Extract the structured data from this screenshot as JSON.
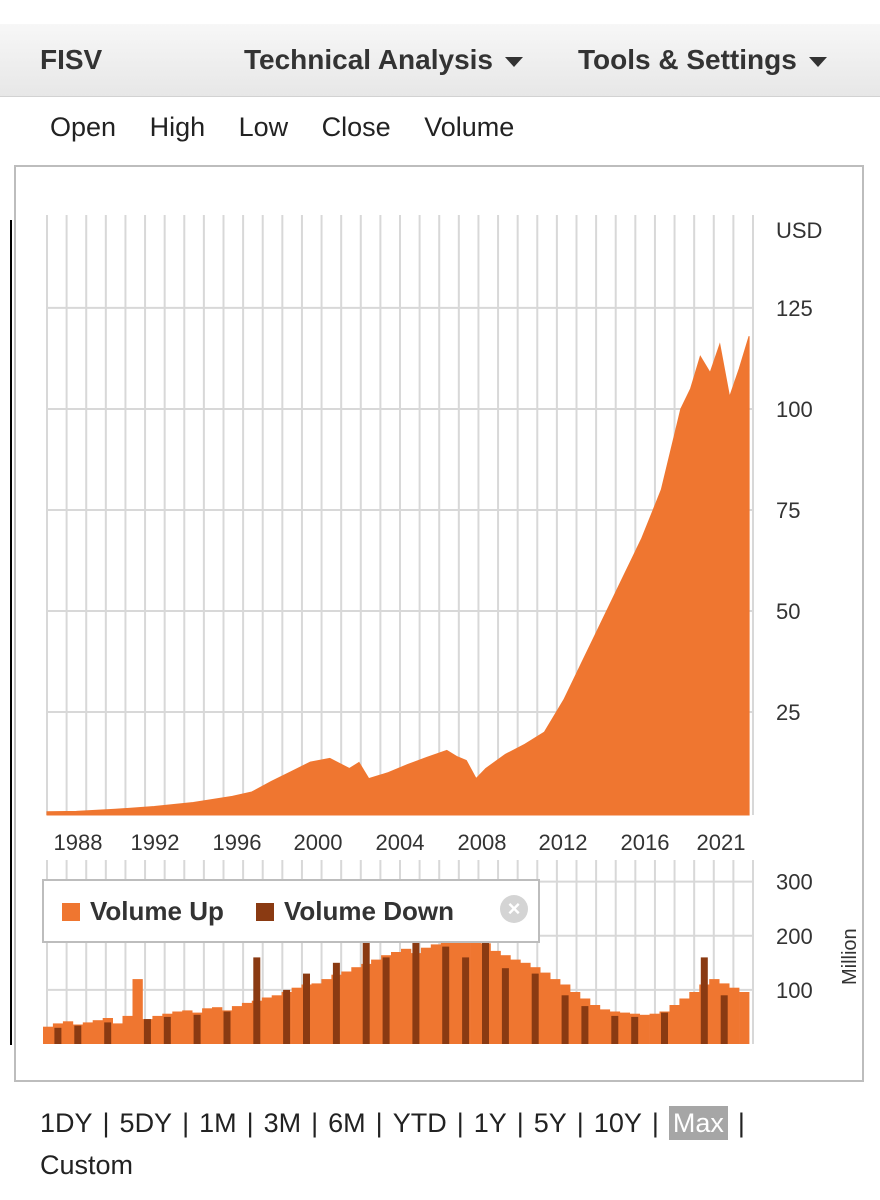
{
  "header": {
    "ticker": "FISV",
    "technical_analysis_label": "Technical Analysis",
    "tools_settings_label": "Tools & Settings"
  },
  "fields": [
    "Open",
    "High",
    "Low",
    "Close",
    "Volume"
  ],
  "legend": {
    "volume_up_label": "Volume Up",
    "volume_down_label": "Volume Down",
    "close_icon": "close-icon"
  },
  "ranges": [
    "1DY",
    "5DY",
    "1M",
    "3M",
    "6M",
    "YTD",
    "1Y",
    "5Y",
    "10Y",
    "Max",
    "Custom"
  ],
  "active_range": "Max",
  "colors": {
    "price_area": "#ef7630",
    "volume_up": "#ef7630",
    "volume_down": "#8a3a12",
    "grid": "#d8d8d8"
  },
  "chart_data": [
    {
      "type": "area",
      "unit_label": "USD",
      "ylim": [
        -0.5,
        148
      ],
      "yticks": [
        25,
        50,
        75,
        100,
        125
      ],
      "xticks": [
        "1988",
        "1992",
        "1996",
        "2000",
        "2004",
        "2008",
        "2012",
        "2016",
        "2021"
      ],
      "x": [
        1986.5,
        1988,
        1990,
        1992,
        1994,
        1996,
        1997,
        1998,
        1999,
        2000,
        2001,
        2002,
        2002.5,
        2003,
        2004,
        2005,
        2006,
        2007,
        2007.5,
        2008,
        2008.5,
        2009,
        2010,
        2011,
        2012,
        2013,
        2014,
        2015,
        2016,
        2017,
        2018,
        2019,
        2019.5,
        2020,
        2020.5,
        2021,
        2021.5,
        2022,
        2022.5
      ],
      "y": [
        0.3,
        0.4,
        0.9,
        1.6,
        2.6,
        4.1,
        5.2,
        7.8,
        10.2,
        12.6,
        13.5,
        11,
        12.5,
        8.5,
        10,
        12,
        13.8,
        15.5,
        14,
        13,
        8.5,
        11,
        14.5,
        17,
        20,
        28,
        38,
        48,
        58,
        68,
        80,
        100,
        105,
        113,
        109,
        116,
        103,
        110,
        118
      ],
      "xlim": [
        1986.5,
        2022.7
      ]
    },
    {
      "type": "bar",
      "unit_label": "Million",
      "yticks": [
        100,
        200,
        300
      ],
      "ylim": [
        0,
        340
      ],
      "series": [
        {
          "name": "Volume Up",
          "values": [
            32,
            38,
            42,
            36,
            40,
            44,
            48,
            38,
            52,
            120,
            46,
            52,
            56,
            60,
            62,
            58,
            66,
            68,
            62,
            70,
            76,
            80,
            86,
            90,
            96,
            104,
            110,
            112,
            120,
            128,
            134,
            142,
            148,
            156,
            164,
            170,
            176,
            168,
            178,
            184,
            190,
            196,
            200,
            204,
            186,
            172,
            164,
            156,
            150,
            142,
            132,
            120,
            110,
            96,
            84,
            72,
            64,
            60,
            58,
            56,
            54,
            56,
            60,
            72,
            84,
            96,
            110,
            120,
            112,
            104,
            96
          ]
        },
        {
          "name": "Volume Down",
          "values": [
            0,
            30,
            0,
            34,
            0,
            0,
            40,
            0,
            0,
            0,
            46,
            0,
            50,
            0,
            0,
            54,
            0,
            0,
            60,
            0,
            0,
            160,
            0,
            0,
            100,
            0,
            130,
            0,
            0,
            150,
            0,
            0,
            210,
            0,
            160,
            0,
            0,
            190,
            0,
            0,
            180,
            0,
            160,
            0,
            210,
            0,
            140,
            0,
            0,
            130,
            0,
            0,
            90,
            0,
            70,
            0,
            0,
            52,
            0,
            50,
            0,
            0,
            58,
            0,
            0,
            0,
            160,
            0,
            90,
            0,
            0
          ]
        }
      ]
    }
  ]
}
